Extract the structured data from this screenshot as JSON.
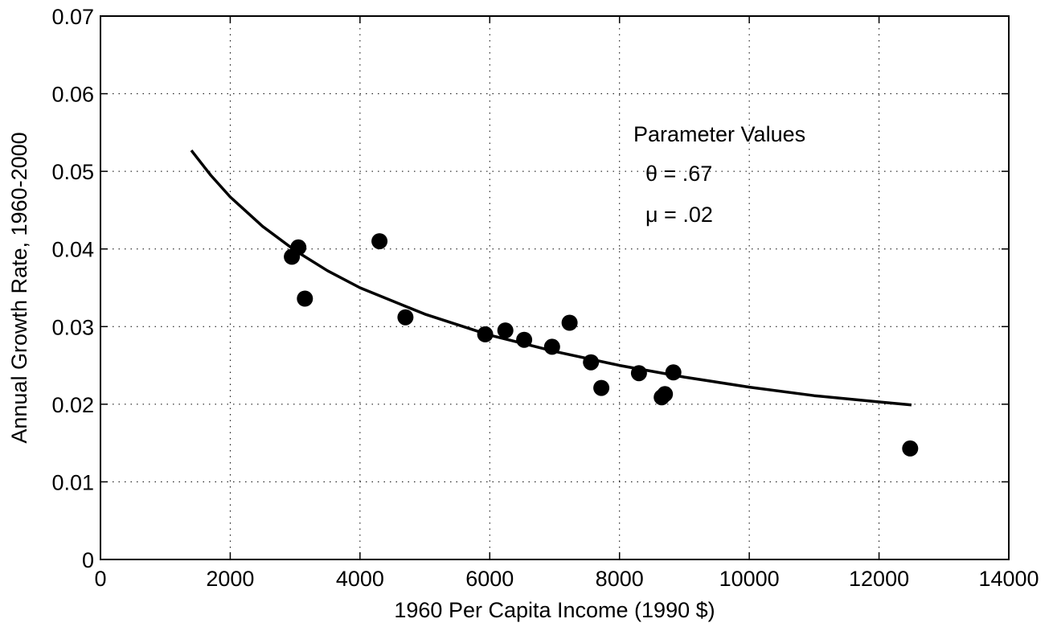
{
  "chart_data": {
    "type": "scatter",
    "title": "",
    "xlabel": "1960 Per Capita Income (1990 $)",
    "ylabel": "Annual Growth Rate, 1960-2000",
    "xlim": [
      0,
      14000
    ],
    "ylim": [
      0,
      0.07
    ],
    "x_ticks": [
      0,
      2000,
      4000,
      6000,
      8000,
      10000,
      12000,
      14000
    ],
    "y_ticks": [
      0,
      0.01,
      0.02,
      0.03,
      0.04,
      0.05,
      0.06,
      0.07
    ],
    "x_tick_labels": [
      "0",
      "2000",
      "4000",
      "6000",
      "8000",
      "10000",
      "12000",
      "14000"
    ],
    "y_tick_labels": [
      "0",
      "0.01",
      "0.02",
      "0.03",
      "0.04",
      "0.05",
      "0.06",
      "0.07"
    ],
    "grid": true,
    "series": [
      {
        "type": "scatter",
        "points": [
          {
            "x": 2950,
            "y": 0.039
          },
          {
            "x": 3050,
            "y": 0.0402
          },
          {
            "x": 3150,
            "y": 0.0336
          },
          {
            "x": 4300,
            "y": 0.041
          },
          {
            "x": 4700,
            "y": 0.0312
          },
          {
            "x": 5930,
            "y": 0.029
          },
          {
            "x": 6240,
            "y": 0.0295
          },
          {
            "x": 6530,
            "y": 0.0283
          },
          {
            "x": 6960,
            "y": 0.0274
          },
          {
            "x": 7230,
            "y": 0.0305
          },
          {
            "x": 7560,
            "y": 0.0254
          },
          {
            "x": 7720,
            "y": 0.0221
          },
          {
            "x": 8300,
            "y": 0.024
          },
          {
            "x": 8650,
            "y": 0.0209
          },
          {
            "x": 8700,
            "y": 0.0213
          },
          {
            "x": 8830,
            "y": 0.0241
          },
          {
            "x": 12480,
            "y": 0.0143
          }
        ]
      },
      {
        "type": "line",
        "points": [
          {
            "x": 1400,
            "y": 0.0527
          },
          {
            "x": 1700,
            "y": 0.0495
          },
          {
            "x": 2000,
            "y": 0.0467
          },
          {
            "x": 2500,
            "y": 0.0429
          },
          {
            "x": 3000,
            "y": 0.0398
          },
          {
            "x": 3500,
            "y": 0.0372
          },
          {
            "x": 4000,
            "y": 0.035
          },
          {
            "x": 5000,
            "y": 0.0316
          },
          {
            "x": 6000,
            "y": 0.0289
          },
          {
            "x": 7000,
            "y": 0.0268
          },
          {
            "x": 8000,
            "y": 0.025
          },
          {
            "x": 9000,
            "y": 0.0235
          },
          {
            "x": 10000,
            "y": 0.0222
          },
          {
            "x": 11000,
            "y": 0.0211
          },
          {
            "x": 12000,
            "y": 0.0203
          },
          {
            "x": 12500,
            "y": 0.0199
          }
        ]
      }
    ],
    "annotations": {
      "heading": "Parameter Values",
      "theta": "θ = .67",
      "mu": "μ = .02"
    }
  }
}
